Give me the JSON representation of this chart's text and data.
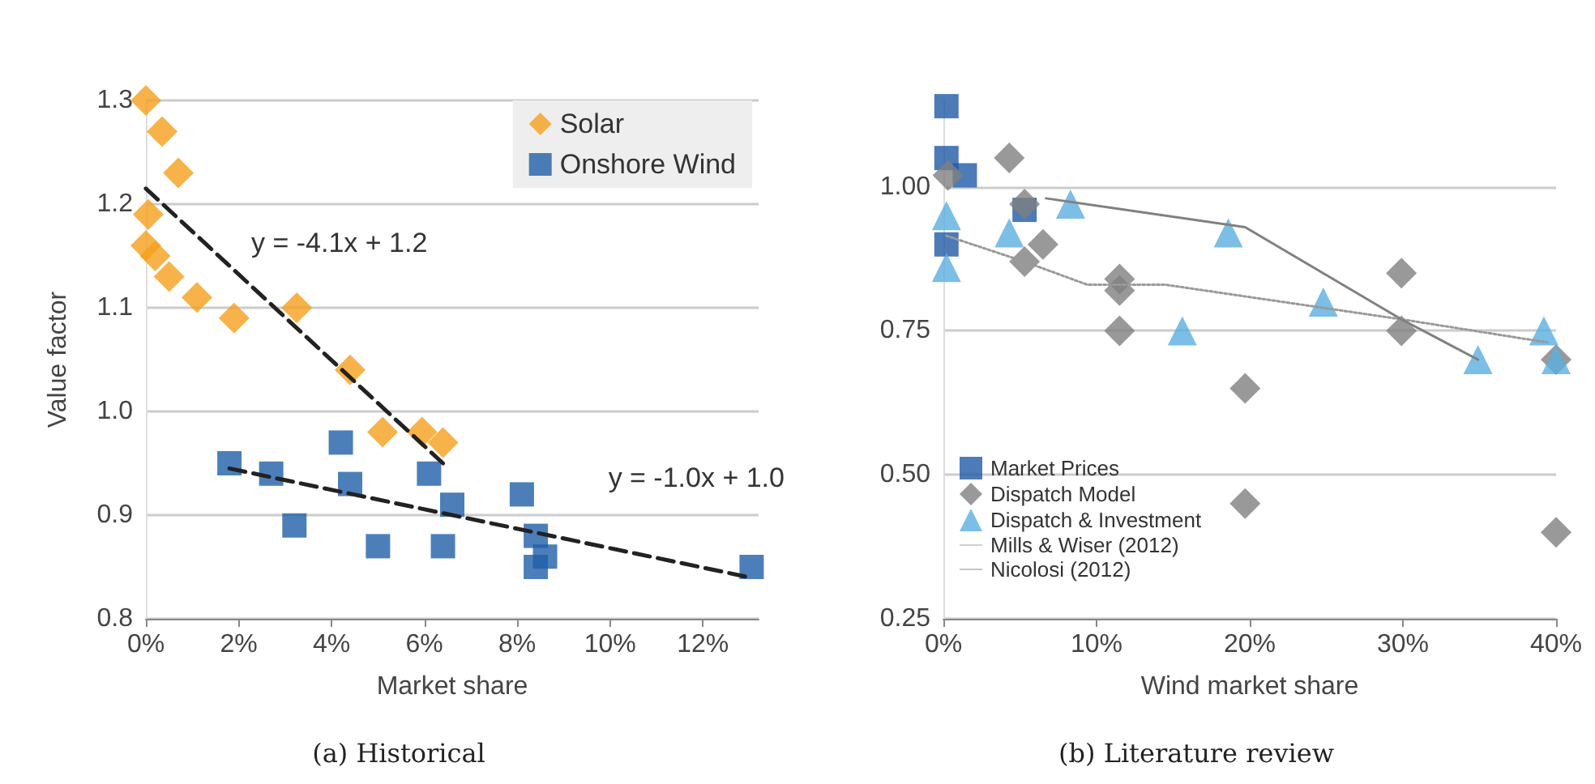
{
  "chart_data": [
    {
      "type": "scatter",
      "title": "(a) Historical",
      "xlabel": "Market share",
      "ylabel": "Value factor",
      "xlim": [
        0,
        13.2
      ],
      "xticks": [
        {
          "value": 0,
          "label": "0%"
        },
        {
          "value": 2,
          "label": "2%"
        },
        {
          "value": 4,
          "label": "4%"
        },
        {
          "value": 6,
          "label": "6%"
        },
        {
          "value": 8,
          "label": "8%"
        },
        {
          "value": 10,
          "label": "10%"
        },
        {
          "value": 12,
          "label": "12%"
        }
      ],
      "ylim": [
        0.8,
        1.3
      ],
      "yticks": [
        {
          "value": 0.8,
          "label": "0.8"
        },
        {
          "value": 0.9,
          "label": "0.9"
        },
        {
          "value": 1.0,
          "label": "1.0"
        },
        {
          "value": 1.1,
          "label": "1.1"
        },
        {
          "value": 1.2,
          "label": "1.2"
        },
        {
          "value": 1.3,
          "label": "1.3"
        }
      ],
      "grid": "y",
      "legend": "top right",
      "series": [
        {
          "name": "Solar",
          "type": "scatter",
          "marker": "diamond",
          "color": "#f5a01c",
          "x": [
            0.0,
            0.35,
            0.7,
            0.05,
            0.0,
            0.2,
            0.5,
            1.1,
            1.9,
            3.25,
            4.4,
            5.1,
            5.95,
            6.4
          ],
          "values": [
            1.3,
            1.27,
            1.23,
            1.19,
            1.16,
            1.15,
            1.13,
            1.11,
            1.09,
            1.1,
            1.04,
            0.98,
            0.98,
            0.97
          ]
        },
        {
          "name": "Onshore Wind",
          "type": "scatter",
          "marker": "square",
          "color": "#1f5fa8",
          "x": [
            1.8,
            2.7,
            3.2,
            4.2,
            4.4,
            5.0,
            6.1,
            6.4,
            6.6,
            8.1,
            8.4,
            8.4,
            8.6,
            13.05
          ],
          "values": [
            0.95,
            0.94,
            0.89,
            0.97,
            0.93,
            0.87,
            0.94,
            0.87,
            0.91,
            0.92,
            0.88,
            0.85,
            0.86,
            0.85
          ]
        },
        {
          "type": "line",
          "line_style": "dashed",
          "marker": "none",
          "color": "#222222",
          "x": [
            0.0,
            6.4
          ],
          "values": [
            1.215,
            0.95
          ]
        },
        {
          "type": "line",
          "line_style": "dashed",
          "marker": "none",
          "color": "#222222",
          "x": [
            1.8,
            13.0
          ],
          "values": [
            0.945,
            0.84
          ]
        }
      ],
      "annotations": [
        "y = -4.1x + 1.2",
        "y = -1.0x + 1.0"
      ]
    },
    {
      "type": "scatter",
      "title": "(b) Literature review",
      "xlabel": "Wind market share",
      "xlim": [
        0,
        40
      ],
      "xticks": [
        {
          "value": 0,
          "label": "0%"
        },
        {
          "value": 10,
          "label": "10%"
        },
        {
          "value": 20,
          "label": "20%"
        },
        {
          "value": 30,
          "label": "30%"
        },
        {
          "value": 40,
          "label": "40%"
        }
      ],
      "ylim": [
        0.25,
        1.15
      ],
      "yticks": [
        {
          "value": 0.25,
          "label": "0.25"
        },
        {
          "value": 0.5,
          "label": "0.50"
        },
        {
          "value": 0.75,
          "label": "0.75"
        },
        {
          "value": 1.0,
          "label": "1.00"
        }
      ],
      "grid": "y",
      "legend": "bottom left",
      "series": [
        {
          "name": "Market Prices",
          "type": "scatter",
          "marker": "square",
          "color": "#1f5aa6",
          "x": [
            0.2,
            0.2,
            1.4,
            0.2,
            5.3
          ],
          "values": [
            1.14,
            1.05,
            1.02,
            0.9,
            0.96
          ]
        },
        {
          "name": "Dispatch Model",
          "type": "scatter",
          "marker": "diamond",
          "color": "#808080",
          "x": [
            0.3,
            4.3,
            5.3,
            6.5,
            5.3,
            11.5,
            11.5,
            11.5,
            29.9,
            29.9,
            40.0,
            19.7,
            19.7,
            40.0
          ],
          "values": [
            1.02,
            1.05,
            0.97,
            0.9,
            0.87,
            0.84,
            0.82,
            0.75,
            0.85,
            0.75,
            0.7,
            0.65,
            0.45,
            0.4
          ]
        },
        {
          "name": "Dispatch & Investment",
          "type": "scatter",
          "marker": "triangle",
          "color": "#5aaee0",
          "x": [
            0.2,
            4.3,
            8.3,
            0.2,
            18.6,
            15.6,
            24.8,
            34.9,
            39.2,
            40.0
          ],
          "values": [
            0.95,
            0.92,
            0.97,
            0.86,
            0.92,
            0.75,
            0.8,
            0.7,
            0.75,
            0.7
          ]
        },
        {
          "name": "Mills & Wiser (2012)",
          "type": "line",
          "line_style": "dotted",
          "marker": "none",
          "color": "#999999",
          "x": [
            0.2,
            5.3,
            9.4,
            14.5,
            29.9,
            39.4
          ],
          "values": [
            0.915,
            0.87,
            0.83,
            0.83,
            0.77,
            0.73
          ]
        },
        {
          "name": "Nicolosi (2012)",
          "type": "line",
          "line_style": "solid",
          "marker": "none",
          "color": "#808080",
          "x": [
            6.7,
            19.7,
            29.9,
            34.9
          ],
          "values": [
            0.98,
            0.93,
            0.77,
            0.7
          ]
        }
      ]
    }
  ]
}
